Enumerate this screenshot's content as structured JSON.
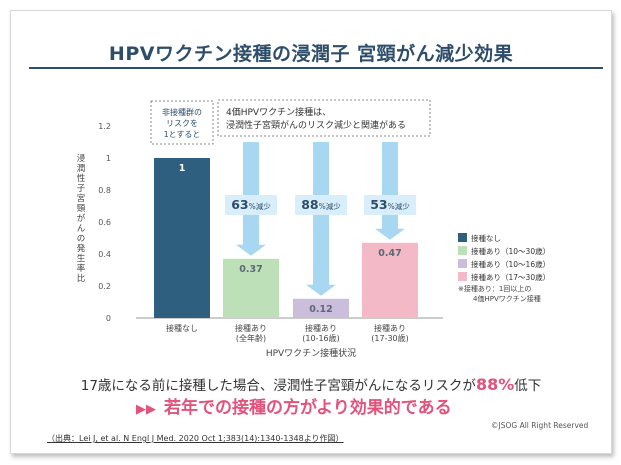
{
  "slide": {
    "title": "HPVワクチン接種の浸潤子 宮頸がん減少効果",
    "summary_prefix": "17歳になる前に接種した場合、浸潤性子宮頸がんになるリスクが",
    "summary_highlight": "88%",
    "summary_suffix": "低下",
    "emphasis_arrow": "▶▶",
    "emphasis_text": "若年での接種の方がより効果的である",
    "copyright": "©JSOG All Right Reserved",
    "source": "（出典：Lei J, et al. N Engl J Med. 2020 Oct 1;383(14):1340-1348より作図）"
  },
  "chart_data": {
    "type": "bar",
    "categories": [
      "接種なし",
      "接種あり（全年齢）",
      "接種あり（10-16歳）",
      "接種あり（17-30歳）"
    ],
    "category_lines": [
      [
        "接種なし"
      ],
      [
        "接種あり",
        "(全年齢)"
      ],
      [
        "接種あり",
        "(10-16歳)"
      ],
      [
        "接種あり",
        "(17-30歳)"
      ]
    ],
    "values": [
      1,
      0.37,
      0.12,
      0.47
    ],
    "value_labels": [
      "1",
      "0.37",
      "0.12",
      "0.47"
    ],
    "colors": [
      "#2e5f7f",
      "#bde0b8",
      "#cbbedd",
      "#f3b9c6"
    ],
    "ylabel": "浸潤性子宮頸がんの発生率比",
    "xlabel": "HPVワクチン接種状況",
    "ylim": [
      0,
      1.2
    ],
    "yticks": [
      "0",
      "0.2",
      "0.4",
      "0.6",
      "0.8",
      "1",
      "1.2"
    ],
    "reductions": [
      {
        "bar": 1,
        "num": "63",
        "unit": "%減少"
      },
      {
        "bar": 2,
        "num": "88",
        "unit": "%減少"
      },
      {
        "bar": 3,
        "num": "53",
        "unit": "%減少"
      }
    ],
    "callout_ref": [
      "非接種群の",
      "リスクを",
      "1とすると"
    ],
    "callout_top": [
      "4価HPVワクチン接種は、",
      "浸潤性子宮頸がんのリスク減少と関連がある"
    ],
    "legend": {
      "position": "right",
      "items": [
        {
          "label": "接種なし",
          "color": "#2e5f7f"
        },
        {
          "label": "接種あり（10〜30歳）",
          "color": "#bde0b8"
        },
        {
          "label": "接種あり（10〜16歳）",
          "color": "#cbbedd"
        },
        {
          "label": "接種あり（17〜30歳）",
          "color": "#f3b9c6"
        }
      ],
      "note": [
        "※接種あり：1回以上の",
        "4価HPVワクチン接種"
      ]
    },
    "colors_meta": {
      "arrow": "#a8d7f2",
      "badge": "#d8eefa",
      "badge_text": "#2d4d6a",
      "accent": "#e3527b"
    }
  }
}
